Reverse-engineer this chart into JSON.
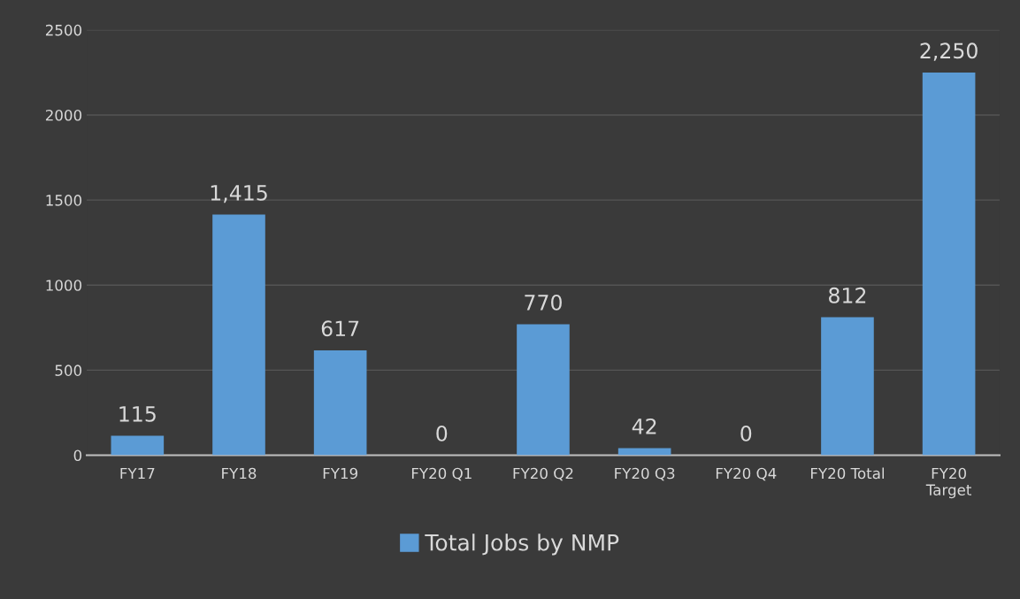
{
  "chart_data": {
    "type": "bar",
    "categories": [
      "FY17",
      "FY18",
      "FY19",
      "FY20 Q1",
      "FY20 Q2",
      "FY20 Q3",
      "FY20 Q4",
      "FY20 Total",
      "FY20\nTarget"
    ],
    "series": [
      {
        "name": "Total Jobs by NMP",
        "color": "#5b9bd5",
        "values": [
          115,
          1415,
          617,
          0,
          770,
          42,
          0,
          812,
          2250
        ]
      }
    ],
    "value_labels": [
      "115",
      "1,415",
      "617",
      "0",
      "770",
      "42",
      "0",
      "812",
      "2,250"
    ],
    "ylim": [
      0,
      2500
    ],
    "yticks": [
      0,
      500,
      1000,
      1500,
      2000,
      2500
    ],
    "grid": "y",
    "legend": "bottom"
  }
}
